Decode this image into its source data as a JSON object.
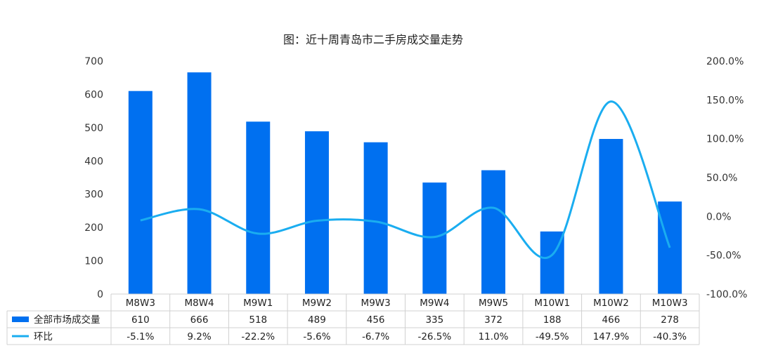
{
  "chart_data": {
    "type": "bar",
    "title": "图：近十周青岛市二手房成交量走势",
    "categories": [
      "M8W3",
      "M8W4",
      "M9W1",
      "M9W2",
      "M9W3",
      "M9W4",
      "M9W5",
      "M10W1",
      "M10W2",
      "M10W3"
    ],
    "series": [
      {
        "name": "全部市场成交量",
        "kind": "bar",
        "axis": "left",
        "color": "#0070f0",
        "values": [
          610,
          666,
          518,
          489,
          456,
          335,
          372,
          188,
          466,
          278
        ],
        "labels": [
          "610",
          "666",
          "518",
          "489",
          "456",
          "335",
          "372",
          "188",
          "466",
          "278"
        ]
      },
      {
        "name": "环比",
        "kind": "smooth-line",
        "axis": "right",
        "color": "#1aadf0",
        "values": [
          -5.1,
          9.2,
          -22.2,
          -5.6,
          -6.7,
          -26.5,
          11.0,
          -49.5,
          147.9,
          -40.3
        ],
        "labels": [
          "-5.1%",
          "9.2%",
          "-22.2%",
          "-5.6%",
          "-6.7%",
          "-26.5%",
          "11.0%",
          "-49.5%",
          "147.9%",
          "-40.3%"
        ]
      }
    ],
    "y_left": {
      "min": 0,
      "max": 700,
      "ticks": [
        "0",
        "100",
        "200",
        "300",
        "400",
        "500",
        "600",
        "700"
      ]
    },
    "y_right": {
      "min": -100,
      "max": 200,
      "ticks": [
        "-100.0%",
        "-50.0%",
        "0.0%",
        "50.0%",
        "100.0%",
        "150.0%",
        "200.0%"
      ]
    },
    "grid": false,
    "legend": "data-table-bottom"
  }
}
